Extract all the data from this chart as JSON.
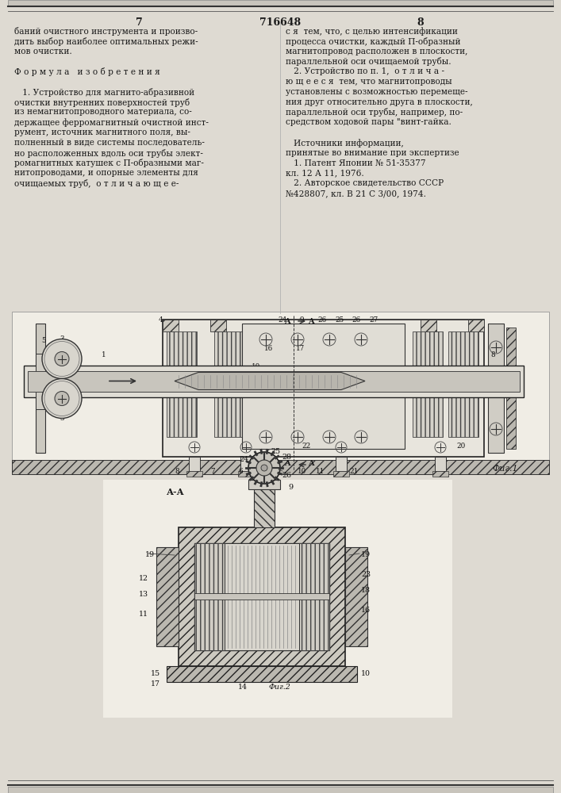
{
  "page_width": 7.07,
  "page_height": 10.0,
  "bg_color": "#dedad2",
  "text_color": "#1a1a1a",
  "header_numbers": [
    "7",
    "716648",
    "8"
  ],
  "col1_text": [
    "баний очистного инструмента и произво-",
    "дить выбор наиболее оптимальных режи-",
    "мов очистки.",
    "",
    "Ф о р м у л а   и з о б р е т е н и я",
    "",
    "   1. Устройство для магнито-абразивной",
    "очистки внутренних поверхностей труб",
    "из немагнитопроводного материала, со-",
    "держащее ферромагнитный очистной инст-",
    "румент, источник магнитного поля, вы-",
    "полненный в виде системы последователь-",
    "но расположенных вдоль оси трубы элект-",
    "ромагнитных катушек с П-образными маг-",
    "нитопроводами, и опорные элементы для",
    "очищаемых труб,  о т л и ч а ю щ е е-"
  ],
  "col2_text": [
    "с я  тем, что, с целью интенсификации",
    "процесса очистки, каждый П-образный",
    "магнитопровод расположен в плоскости,",
    "параллельной оси очищаемой трубы.",
    "   2. Устройство по п. 1,  о т л и ч а -",
    "ю щ е е с я  тем, что магнитопроводы",
    "установлены с возможностью перемеще-",
    "ния друг относительно друга в плоскости,",
    "параллельной оси трубы, например, по-",
    "средством ходовой пары \"винт-гайка.",
    "",
    "   Источники информации,",
    "принятые во внимание при экспертизе",
    "   1. Патент Японии № 51-35377",
    "кл. 12 А 11, 1976.",
    "   2. Авторское свидетельство СССР",
    "№428807, кл. В 21 С 3/00, 1974."
  ],
  "fig1_caption": "Фиг.1",
  "fig2_caption": "Фиг.2",
  "section_label": "А-А"
}
